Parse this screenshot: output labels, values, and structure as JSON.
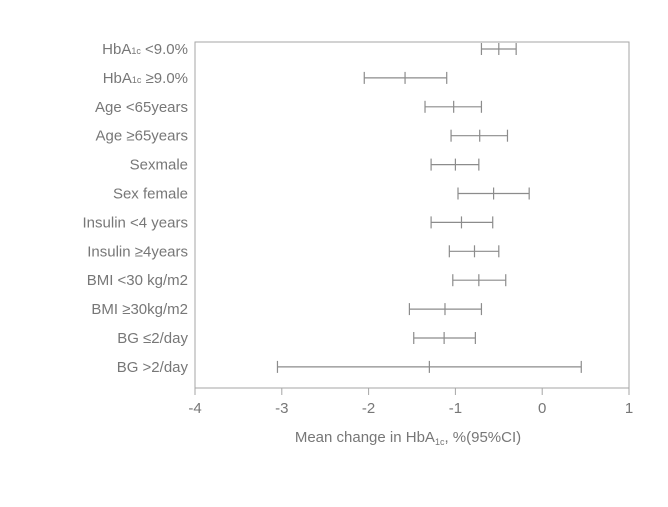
{
  "chart_data": {
    "type": "forest",
    "xlabel": {
      "prefix": "Mean change in HbA",
      "sub": "1c",
      "suffix": ", %(95%CI)"
    },
    "xlim": [
      -4,
      1
    ],
    "xticks": [
      "-4",
      "-3",
      "-2",
      "-1",
      "0",
      "1"
    ],
    "grid": false,
    "colors": {
      "axis": "#a6a6a6",
      "whisker": "#8c8c8c",
      "text": "#777777"
    },
    "rows": [
      {
        "label": "HbA<sub>1c</sub> <9.0%",
        "mean": -0.5,
        "lower": -0.7,
        "upper": -0.3
      },
      {
        "label": "HbA<sub>1c</sub> ≥9.0%",
        "mean": -1.58,
        "lower": -2.05,
        "upper": -1.1
      },
      {
        "label": "Age <65years",
        "mean": -1.02,
        "lower": -1.35,
        "upper": -0.7
      },
      {
        "label": "Age ≥65years",
        "mean": -0.72,
        "lower": -1.05,
        "upper": -0.4
      },
      {
        "label": "Sexmale",
        "mean": -1.0,
        "lower": -1.28,
        "upper": -0.73
      },
      {
        "label": "Sex female",
        "mean": -0.56,
        "lower": -0.97,
        "upper": -0.15
      },
      {
        "label": "Insulin <4 years",
        "mean": -0.93,
        "lower": -1.28,
        "upper": -0.57
      },
      {
        "label": "Insulin ≥4years",
        "mean": -0.78,
        "lower": -1.07,
        "upper": -0.5
      },
      {
        "label": "BMI <30 kg/m2",
        "mean": -0.73,
        "lower": -1.03,
        "upper": -0.42
      },
      {
        "label": "BMI ≥30kg/m2",
        "mean": -1.12,
        "lower": -1.53,
        "upper": -0.7
      },
      {
        "label": "BG ≤2/day",
        "mean": -1.13,
        "lower": -1.48,
        "upper": -0.77
      },
      {
        "label": "BG >2/day",
        "mean": -1.3,
        "lower": -3.05,
        "upper": 0.45
      }
    ]
  }
}
